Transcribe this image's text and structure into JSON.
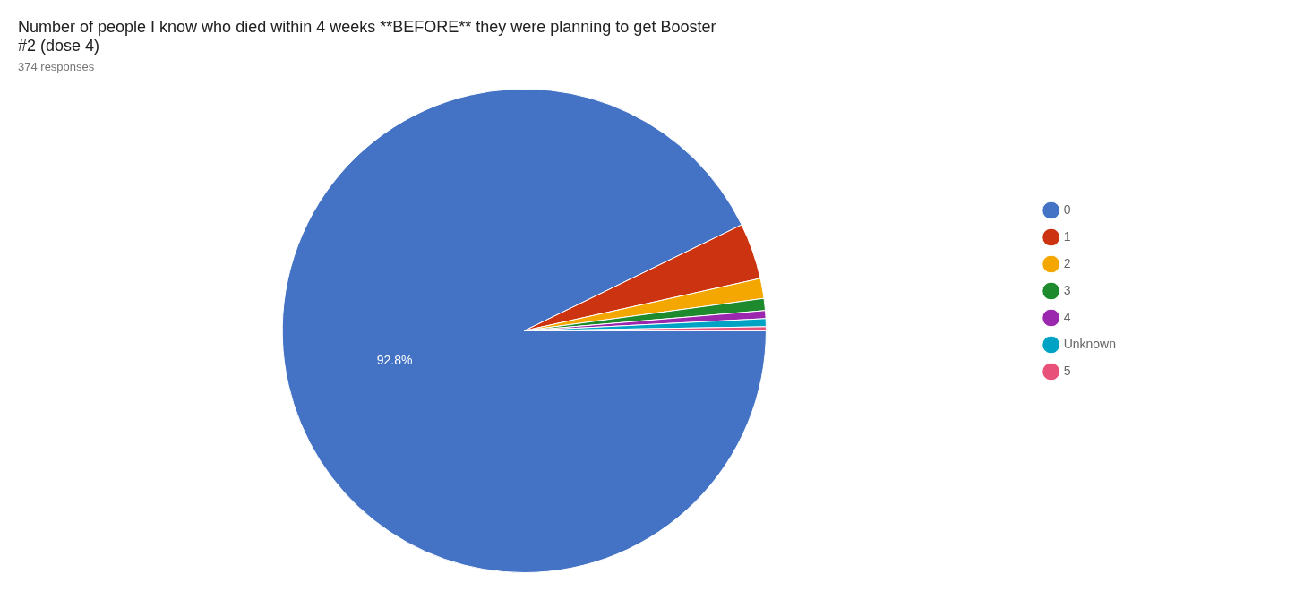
{
  "chart_data": {
    "type": "pie",
    "title": [
      "Number of people I know who died within 4 weeks **BEFORE** they were planning to get Booster",
      "#2 (dose 4)"
    ],
    "subtitle": "374 responses",
    "categories": [
      "0",
      "1",
      "2",
      "3",
      "4",
      "Unknown",
      "5"
    ],
    "values": [
      347.0,
      14.0,
      5.0,
      3.0,
      2.0,
      2.0,
      1.0
    ],
    "colors": [
      "#4472C4",
      "#CC3311",
      "#F4A700",
      "#1E8A2E",
      "#9B27AF",
      "#00A3C4",
      "#E8527A"
    ],
    "annotation": "92.8%",
    "legend": "right"
  }
}
